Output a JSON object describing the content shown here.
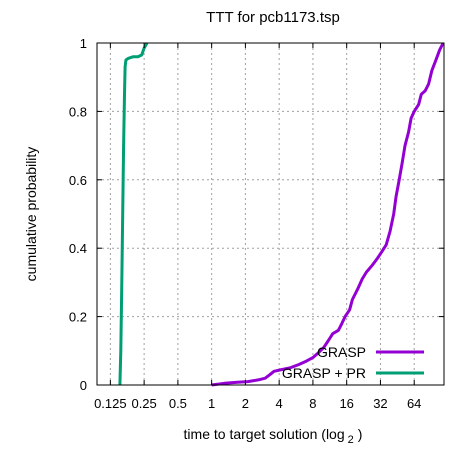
{
  "chart_data": {
    "type": "line",
    "title": "TTT for pcb1173.tsp",
    "xlabel": "time to target solution (log",
    "xlabel_sub": "2",
    "xlabel_close": ")",
    "ylabel": "cumulative probability",
    "x_scale": "log2",
    "xlim": [
      0.095,
      118
    ],
    "ylim": [
      0,
      1
    ],
    "grid": true,
    "legend_position": "bottom-right",
    "x_ticks": [
      {
        "value": 0.125,
        "label": "0.125"
      },
      {
        "value": 0.25,
        "label": "0.25"
      },
      {
        "value": 0.5,
        "label": "0.5"
      },
      {
        "value": 1,
        "label": "1"
      },
      {
        "value": 2,
        "label": "2"
      },
      {
        "value": 4,
        "label": "4"
      },
      {
        "value": 8,
        "label": "8"
      },
      {
        "value": 16,
        "label": "16"
      },
      {
        "value": 32,
        "label": "32"
      },
      {
        "value": 64,
        "label": "64"
      }
    ],
    "y_ticks": [
      {
        "value": 0,
        "label": "0"
      },
      {
        "value": 0.2,
        "label": "0.2"
      },
      {
        "value": 0.4,
        "label": "0.4"
      },
      {
        "value": 0.6,
        "label": "0.6"
      },
      {
        "value": 0.8,
        "label": "0.8"
      },
      {
        "value": 1,
        "label": "1"
      }
    ],
    "series": [
      {
        "name": "GRASP",
        "color": "#9400d3",
        "points": [
          [
            1.0,
            0.0
          ],
          [
            1.3,
            0.005
          ],
          [
            1.7,
            0.008
          ],
          [
            2.1,
            0.01
          ],
          [
            2.6,
            0.015
          ],
          [
            3.0,
            0.02
          ],
          [
            3.3,
            0.03
          ],
          [
            3.6,
            0.04
          ],
          [
            4.2,
            0.045
          ],
          [
            5.0,
            0.05
          ],
          [
            6.0,
            0.06
          ],
          [
            7.0,
            0.07
          ],
          [
            8.0,
            0.08
          ],
          [
            9.0,
            0.095
          ],
          [
            10.0,
            0.11
          ],
          [
            11.0,
            0.13
          ],
          [
            12.0,
            0.15
          ],
          [
            13.5,
            0.16
          ],
          [
            14.5,
            0.18
          ],
          [
            15.5,
            0.2
          ],
          [
            17.0,
            0.22
          ],
          [
            18.0,
            0.25
          ],
          [
            20.0,
            0.28
          ],
          [
            22.0,
            0.31
          ],
          [
            24.0,
            0.33
          ],
          [
            27.0,
            0.35
          ],
          [
            30.0,
            0.37
          ],
          [
            33.0,
            0.39
          ],
          [
            36.0,
            0.41
          ],
          [
            39.0,
            0.45
          ],
          [
            42.0,
            0.5
          ],
          [
            44.0,
            0.55
          ],
          [
            47.0,
            0.6
          ],
          [
            50.0,
            0.65
          ],
          [
            53.0,
            0.7
          ],
          [
            57.0,
            0.74
          ],
          [
            60.0,
            0.78
          ],
          [
            64.0,
            0.8
          ],
          [
            70.0,
            0.82
          ],
          [
            74.0,
            0.85
          ],
          [
            80.0,
            0.86
          ],
          [
            86.0,
            0.88
          ],
          [
            92.0,
            0.92
          ],
          [
            100.0,
            0.95
          ],
          [
            108.0,
            0.98
          ],
          [
            116.0,
            1.0
          ]
        ]
      },
      {
        "name": "GRASP + PR",
        "color": "#009e73",
        "points": [
          [
            0.152,
            0.0
          ],
          [
            0.155,
            0.1
          ],
          [
            0.158,
            0.3
          ],
          [
            0.161,
            0.5
          ],
          [
            0.164,
            0.7
          ],
          [
            0.167,
            0.85
          ],
          [
            0.169,
            0.93
          ],
          [
            0.172,
            0.95
          ],
          [
            0.18,
            0.955
          ],
          [
            0.2,
            0.96
          ],
          [
            0.22,
            0.96
          ],
          [
            0.238,
            0.965
          ],
          [
            0.25,
            0.985
          ],
          [
            0.265,
            1.0
          ]
        ]
      }
    ]
  }
}
